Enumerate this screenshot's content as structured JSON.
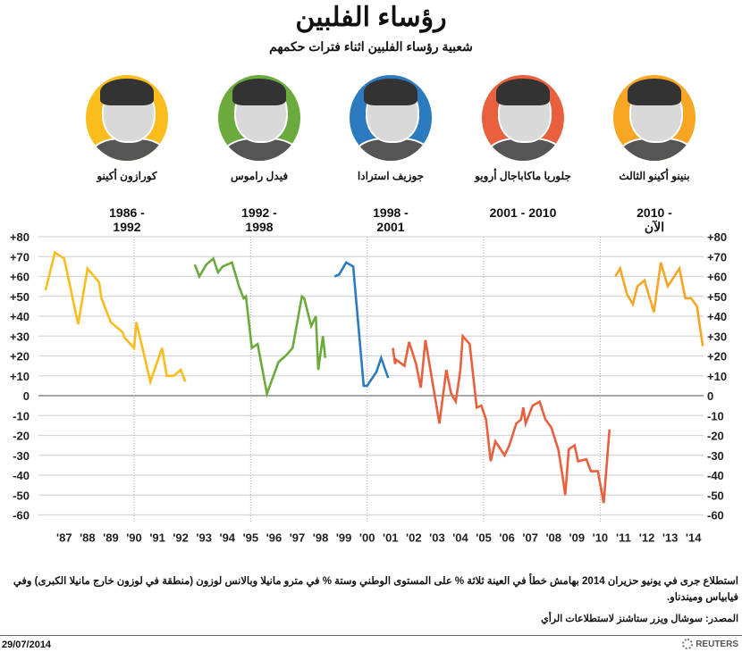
{
  "header": {
    "title": "رؤساء الفلبين",
    "subtitle": "شعبية رؤساء الفلبين اثناء فترات حكمهم"
  },
  "presidents": [
    {
      "name": "كورازون أكينو",
      "years_line1": "1986 -",
      "years_line2": "1992",
      "color": "#fbbd1e"
    },
    {
      "name": "فيدل راموس",
      "years_line1": "1992 -",
      "years_line2": "1998",
      "color": "#6bab3e"
    },
    {
      "name": "جوزيف استرادا",
      "years_line1": "1998 -",
      "years_line2": "2001",
      "color": "#2c7bbf"
    },
    {
      "name": "جلوريا ماكاباجال أرويو",
      "years_line1": "2001 - 2010",
      "years_line2": "",
      "color": "#e8603e"
    },
    {
      "name": "بنينو أكينو الثالث",
      "years_line1": "2010 -",
      "years_line2": "الآن",
      "color": "#f6a623"
    }
  ],
  "chart_data": {
    "type": "line",
    "title": "",
    "xlabel": "",
    "ylabel": "",
    "xlim": [
      1986,
      2014.6
    ],
    "ylim": [
      -60,
      80
    ],
    "y_ticks": [
      "+80",
      "+70",
      "+60",
      "+50",
      "+40",
      "+30",
      "+20",
      "+10",
      "0",
      "-10",
      "-20",
      "-30",
      "-40",
      "-50",
      "-60"
    ],
    "x_ticks": [
      "'87",
      "'88",
      "'89",
      "'90",
      "'91",
      "'92",
      "'93",
      "'94",
      "'95",
      "'96",
      "'97",
      "'98",
      "'99",
      "'00",
      "'01",
      "'02",
      "'03",
      "'04",
      "'05",
      "'06",
      "'07",
      "'08",
      "'09",
      "'10",
      "'11",
      "'12",
      "'13",
      "'14"
    ],
    "grid": true,
    "y_axis_both_sides": true,
    "series": [
      {
        "color": "#fbbd1e",
        "points": [
          [
            1986.2,
            53
          ],
          [
            1986.6,
            72
          ],
          [
            1987.0,
            69
          ],
          [
            1987.6,
            36
          ],
          [
            1988.0,
            64
          ],
          [
            1988.5,
            57
          ],
          [
            1988.6,
            49
          ],
          [
            1989.0,
            37
          ],
          [
            1989.5,
            32
          ],
          [
            1989.6,
            29
          ],
          [
            1990.0,
            24
          ],
          [
            1990.1,
            37
          ],
          [
            1990.7,
            7
          ],
          [
            1991.2,
            24
          ],
          [
            1991.4,
            10
          ],
          [
            1991.7,
            10
          ],
          [
            1992.0,
            13
          ],
          [
            1992.2,
            7
          ]
        ]
      },
      {
        "color": "#6bab3e",
        "points": [
          [
            1992.6,
            66
          ],
          [
            1992.8,
            60
          ],
          [
            1993.1,
            66
          ],
          [
            1993.4,
            69
          ],
          [
            1993.6,
            62
          ],
          [
            1993.8,
            65
          ],
          [
            1994.2,
            67
          ],
          [
            1994.5,
            55
          ],
          [
            1994.7,
            49
          ],
          [
            1994.8,
            50
          ],
          [
            1995.05,
            24
          ],
          [
            1995.3,
            26
          ],
          [
            1995.7,
            1
          ],
          [
            1996.2,
            17
          ],
          [
            1996.5,
            20
          ],
          [
            1996.8,
            24
          ],
          [
            1997.2,
            50
          ],
          [
            1997.3,
            49
          ],
          [
            1997.6,
            35
          ],
          [
            1997.8,
            40
          ],
          [
            1997.9,
            13
          ],
          [
            1998.1,
            30
          ],
          [
            1998.2,
            19
          ]
        ]
      },
      {
        "color": "#2c7bbf",
        "points": [
          [
            1998.6,
            60
          ],
          [
            1998.8,
            61
          ],
          [
            1999.1,
            67
          ],
          [
            1999.4,
            65
          ],
          [
            1999.85,
            5
          ],
          [
            2000.0,
            5
          ],
          [
            2000.4,
            12
          ],
          [
            2000.6,
            19
          ],
          [
            2000.9,
            9
          ]
        ]
      },
      {
        "color": "#e8603e",
        "points": [
          [
            2001.1,
            24
          ],
          [
            2001.2,
            16
          ],
          [
            2001.25,
            18
          ],
          [
            2001.6,
            15
          ],
          [
            2001.8,
            27
          ],
          [
            2002.1,
            16
          ],
          [
            2002.3,
            4
          ],
          [
            2002.5,
            28
          ],
          [
            2002.8,
            7
          ],
          [
            2003.1,
            -14
          ],
          [
            2003.4,
            13
          ],
          [
            2003.6,
            1
          ],
          [
            2003.8,
            -3
          ],
          [
            2004.0,
            13
          ],
          [
            2004.1,
            30
          ],
          [
            2004.4,
            26
          ],
          [
            2004.7,
            -6
          ],
          [
            2004.9,
            -5
          ],
          [
            2005.1,
            -12
          ],
          [
            2005.3,
            -33
          ],
          [
            2005.5,
            -23
          ],
          [
            2005.9,
            -30
          ],
          [
            2006.1,
            -25
          ],
          [
            2006.4,
            -14
          ],
          [
            2006.6,
            -12
          ],
          [
            2006.7,
            -6
          ],
          [
            2006.8,
            -14
          ],
          [
            2007.1,
            -5
          ],
          [
            2007.4,
            -3
          ],
          [
            2007.65,
            -12
          ],
          [
            2007.9,
            -16
          ],
          [
            2008.2,
            -27
          ],
          [
            2008.35,
            -38
          ],
          [
            2008.5,
            -50
          ],
          [
            2008.65,
            -27
          ],
          [
            2008.9,
            -25
          ],
          [
            2009.05,
            -33
          ],
          [
            2009.4,
            -32
          ],
          [
            2009.6,
            -38
          ],
          [
            2009.9,
            -38
          ],
          [
            2010.15,
            -54
          ],
          [
            2010.4,
            -17
          ]
        ]
      },
      {
        "color": "#f6a623",
        "points": [
          [
            2010.65,
            60
          ],
          [
            2010.85,
            64
          ],
          [
            2011.15,
            51
          ],
          [
            2011.4,
            46
          ],
          [
            2011.6,
            55
          ],
          [
            2011.9,
            58
          ],
          [
            2012.3,
            42
          ],
          [
            2012.6,
            67
          ],
          [
            2012.9,
            55
          ],
          [
            2013.4,
            64
          ],
          [
            2013.65,
            49
          ],
          [
            2013.9,
            49
          ],
          [
            2014.15,
            45
          ],
          [
            2014.4,
            25
          ]
        ]
      }
    ]
  },
  "footer": {
    "note": "استطلاع جرى في يونيو حزيران 2014 بهامش خطأ في العينة ثلاثة % على المستوى الوطني وستة % في مترو مانيلا وبالانس لوزون (منطقة في لوزون خارج مانيلا الكبرى) وفي فيابياس وميندناو.",
    "source": "المصدر: سوشال ويزر ستاشنز لاستطلاعات الرأي",
    "date": "29/07/2014",
    "brand": "REUTERS"
  }
}
